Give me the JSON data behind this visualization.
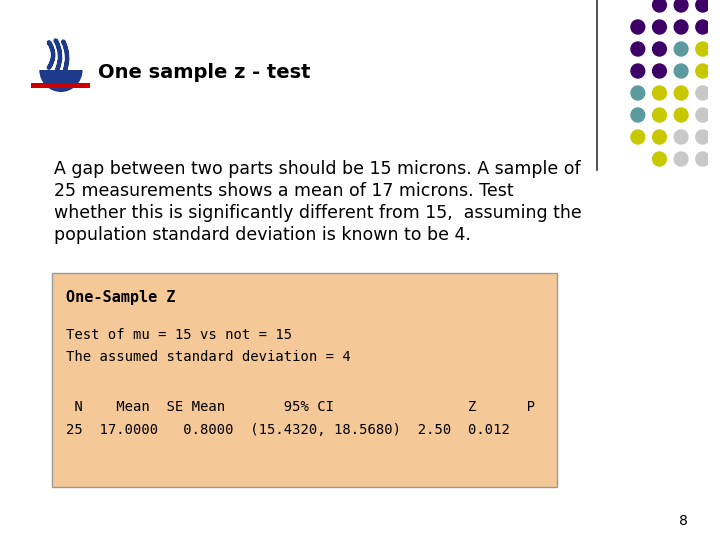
{
  "title": "One sample z - test",
  "title_fontsize": 14,
  "body_text_lines": [
    "A gap between two parts should be 15 microns. A sample of",
    "25 measurements shows a mean of 17 microns. Test",
    "whether this is significantly different from 15,  assuming the",
    "population standard deviation is known to be 4."
  ],
  "body_fontsize": 12.5,
  "box_title": "One-Sample Z",
  "box_line1": "Test of mu = 15 vs not = 15",
  "box_line2": "The assumed standard deviation = 4",
  "box_header": " N    Mean  SE Mean       95% CI                Z      P",
  "box_data": "25  17.0000   0.8000  (15.4320, 18.5680)  2.50  0.012",
  "box_bg": "#F5C898",
  "box_border": "#999999",
  "bg_color": "#FFFFFF",
  "page_number": "8",
  "logo_bar_color": "#CC0000",
  "divider_color": "#333333",
  "dot_rows": [
    [
      "#3D0066",
      "#3D0066",
      "#3D0066"
    ],
    [
      "#3D0066",
      "#3D0066",
      "#3D0066",
      "#3D0066"
    ],
    [
      "#3D0066",
      "#3D0066",
      "#5B9BA0",
      "#C8C800"
    ],
    [
      "#3D0066",
      "#3D0066",
      "#5B9BA0",
      "#C8C800"
    ],
    [
      "#5B9BA0",
      "#C8C800",
      "#C8C800",
      "#C8C8C8"
    ],
    [
      "#5B9BA0",
      "#C8C800",
      "#C8C800",
      "#C8C8C8"
    ],
    [
      "#C8C800",
      "#C8C800",
      "#C8C8C8",
      "#C8C8C8"
    ],
    [
      "#C8C800",
      "#C8C8C8",
      "#C8C8C8"
    ]
  ],
  "dot_r": 7
}
